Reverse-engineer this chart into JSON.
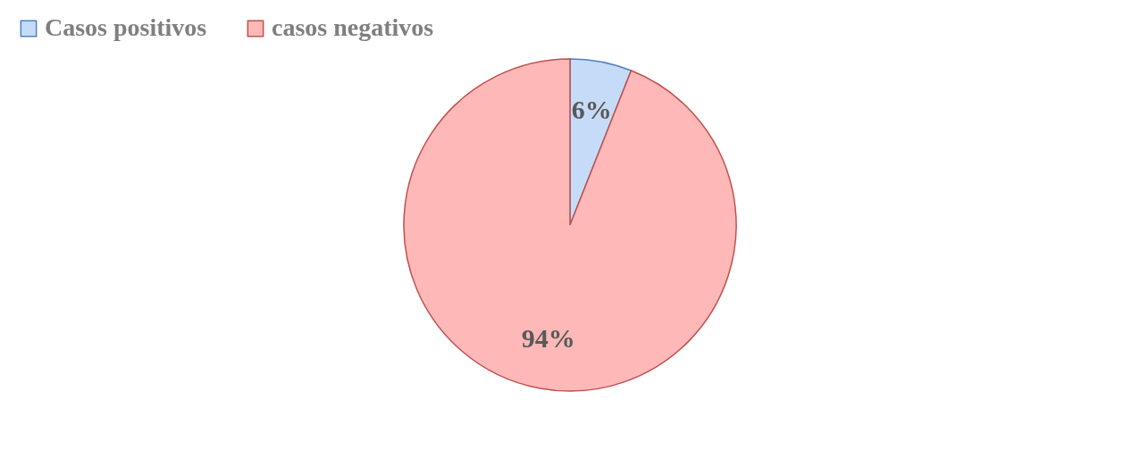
{
  "chart_data": {
    "type": "pie",
    "categories": [
      "Casos positivos",
      "casos negativos"
    ],
    "values": [
      6,
      94
    ],
    "colors": [
      "#c6dbf7",
      "#ffb8b8"
    ],
    "value_labels": [
      "6%",
      "94%"
    ],
    "legend": "top left"
  }
}
